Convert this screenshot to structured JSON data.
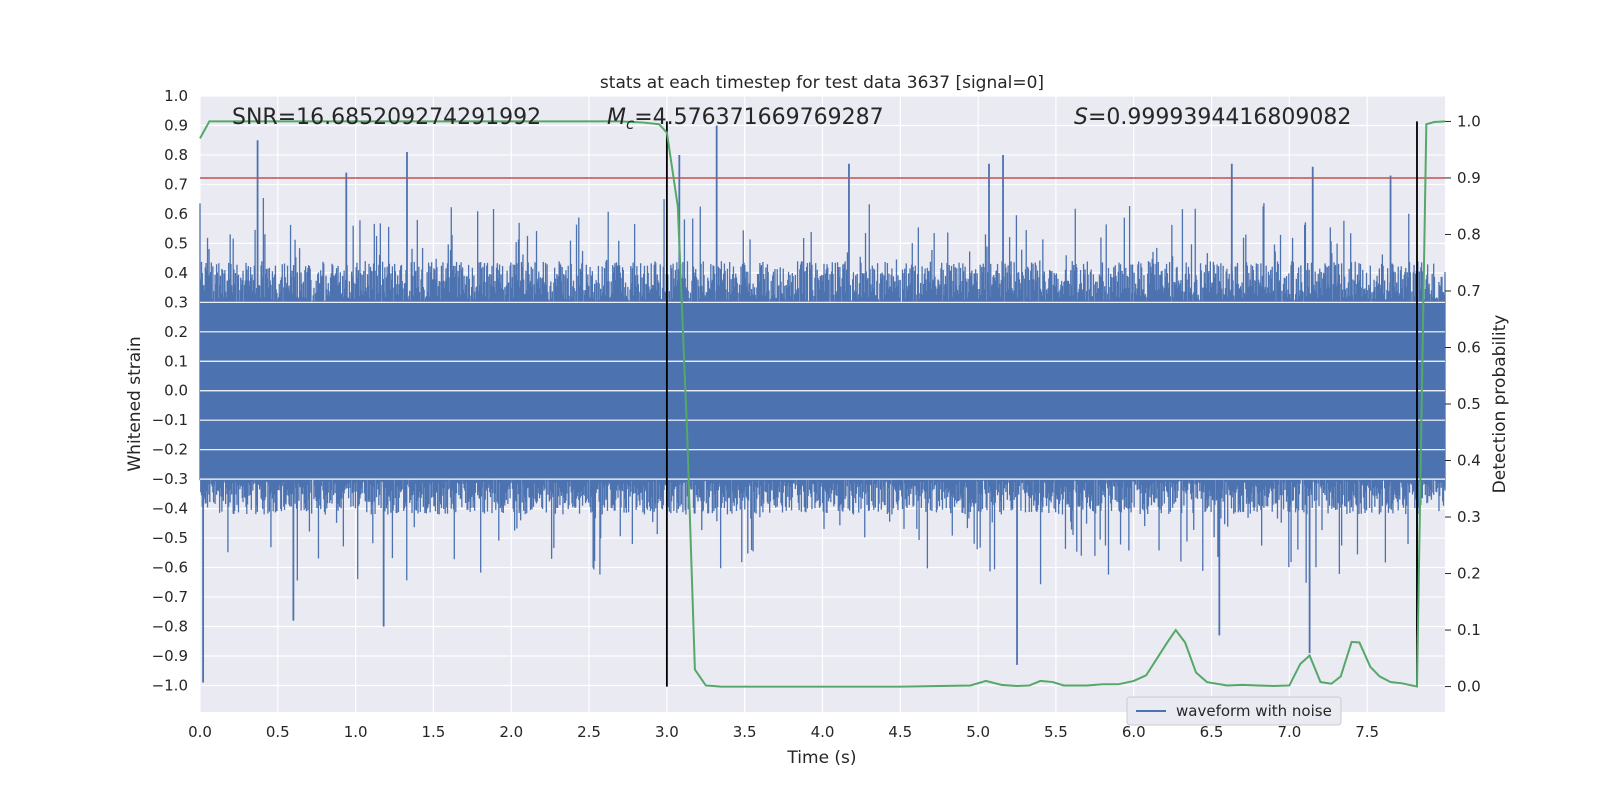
{
  "chart_data": {
    "type": "line",
    "title": "stats at each timestep for test data 3637 [signal=0]",
    "xlabel": "Time (s)",
    "ylabel": "Whitened strain",
    "y2label": "Detection probability",
    "xlim": [
      0.0,
      8.0
    ],
    "ylim": [
      -1.09,
      1.0
    ],
    "y2lim": [
      -0.045,
      1.045
    ],
    "xticks": [
      "0.0",
      "0.5",
      "1.0",
      "1.5",
      "2.0",
      "2.5",
      "3.0",
      "3.5",
      "4.0",
      "4.5",
      "5.0",
      "5.5",
      "6.0",
      "6.5",
      "7.0",
      "7.5"
    ],
    "xtick_values": [
      0,
      0.5,
      1,
      1.5,
      2,
      2.5,
      3,
      3.5,
      4,
      4.5,
      5,
      5.5,
      6,
      6.5,
      7,
      7.5
    ],
    "yticks": [
      "1.0",
      "0.9",
      "0.8",
      "0.7",
      "0.6",
      "0.5",
      "0.4",
      "0.3",
      "0.2",
      "0.1",
      "0.0",
      "−0.1",
      "−0.2",
      "−0.3",
      "−0.4",
      "−0.5",
      "−0.6",
      "−0.7",
      "−0.8",
      "−0.9",
      "−1.0"
    ],
    "ytick_values": [
      1.0,
      0.9,
      0.8,
      0.7,
      0.6,
      0.5,
      0.4,
      0.3,
      0.2,
      0.1,
      0.0,
      -0.1,
      -0.2,
      -0.3,
      -0.4,
      -0.5,
      -0.6,
      -0.7,
      -0.8,
      -0.9,
      -1.0
    ],
    "y2ticks": [
      "1.0",
      "0.9",
      "0.8",
      "0.7",
      "0.6",
      "0.5",
      "0.4",
      "0.3",
      "0.2",
      "0.1",
      "0.0"
    ],
    "y2tick_values": [
      1.0,
      0.9,
      0.8,
      0.7,
      0.6,
      0.5,
      0.4,
      0.3,
      0.2,
      0.1,
      0.0
    ],
    "annotations": {
      "snr": "SNR=16.685209274291992",
      "mc_symbol": "M",
      "mc_sub": "c",
      "mc_value": "=4.576371669769287",
      "s_symbol": "S",
      "s_value": "=0.9999394416809082"
    },
    "threshold_line": {
      "y2": 0.9,
      "color": "#c44e52"
    },
    "vertical_markers": [
      {
        "x": 3.0,
        "y2_range": [
          0.0,
          1.0
        ]
      },
      {
        "x": 7.82,
        "y2_range": [
          0.0,
          1.0
        ]
      }
    ],
    "series": [
      {
        "name": "waveform with noise",
        "axis": "left",
        "color": "#4c72b0",
        "description": "noise waveform, approx 0.4 band with spikes",
        "spikes_high": [
          [
            0.37,
            0.85
          ],
          [
            0.94,
            0.74
          ],
          [
            1.33,
            0.81
          ],
          [
            3.32,
            0.9
          ],
          [
            3.08,
            0.8
          ],
          [
            4.17,
            0.77
          ],
          [
            5.07,
            0.77
          ],
          [
            5.16,
            0.8
          ],
          [
            6.63,
            0.77
          ],
          [
            7.15,
            0.76
          ],
          [
            7.65,
            0.73
          ]
        ],
        "spikes_low": [
          [
            0.02,
            -0.99
          ],
          [
            0.6,
            -0.78
          ],
          [
            1.18,
            -0.8
          ],
          [
            5.25,
            -0.93
          ],
          [
            6.55,
            -0.83
          ],
          [
            7.13,
            -0.89
          ],
          [
            7.82,
            -0.83
          ]
        ]
      },
      {
        "name": "Detection probability",
        "axis": "right",
        "color": "#55a868",
        "x": [
          0.0,
          0.06,
          0.3,
          0.6,
          1.0,
          1.5,
          2.0,
          2.5,
          2.7,
          2.85,
          2.95,
          3.0,
          3.07,
          3.13,
          3.18,
          3.25,
          3.35,
          3.6,
          4.0,
          4.5,
          4.95,
          5.05,
          5.15,
          5.25,
          5.33,
          5.4,
          5.48,
          5.55,
          5.7,
          5.8,
          5.9,
          6.0,
          6.08,
          6.15,
          6.22,
          6.27,
          6.33,
          6.4,
          6.47,
          6.6,
          6.7,
          6.8,
          6.9,
          7.0,
          7.07,
          7.13,
          7.2,
          7.27,
          7.33,
          7.4,
          7.45,
          7.52,
          7.58,
          7.65,
          7.72,
          7.82,
          7.88,
          7.93,
          8.0
        ],
        "y": [
          0.97,
          1.0,
          1.0,
          1.0,
          1.0,
          1.0,
          1.0,
          1.0,
          1.0,
          0.998,
          0.995,
          0.98,
          0.85,
          0.45,
          0.03,
          0.002,
          0.0,
          0.0,
          0.0,
          0.0,
          0.002,
          0.01,
          0.003,
          0.001,
          0.002,
          0.01,
          0.008,
          0.002,
          0.002,
          0.004,
          0.004,
          0.01,
          0.02,
          0.05,
          0.08,
          0.1,
          0.078,
          0.025,
          0.008,
          0.002,
          0.003,
          0.002,
          0.001,
          0.002,
          0.04,
          0.055,
          0.008,
          0.005,
          0.018,
          0.079,
          0.078,
          0.035,
          0.018,
          0.008,
          0.006,
          0.0,
          0.995,
          0.999,
          1.0
        ]
      }
    ],
    "legend": {
      "label": "waveform with noise",
      "location": "lower-right"
    }
  }
}
